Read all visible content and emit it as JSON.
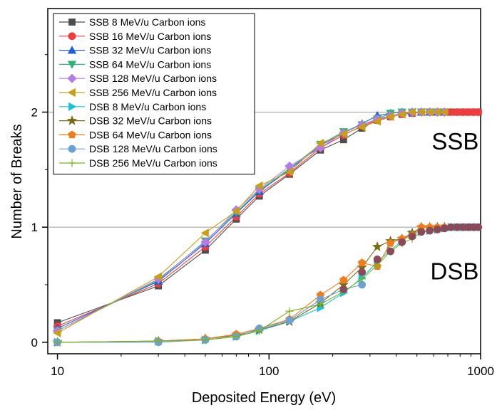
{
  "chart_data": {
    "type": "line",
    "title": "",
    "xlabel": "Deposited Energy (eV)",
    "ylabel": "Number of Breaks",
    "xscale": "log",
    "xlim": [
      9,
      1000
    ],
    "ylim": [
      -0.1,
      2.9
    ],
    "x_ticks": [
      10,
      100,
      1000
    ],
    "x_tick_labels": [
      "10",
      "100",
      "1000"
    ],
    "y_ticks": [
      0,
      1,
      2
    ],
    "y_tick_labels": [
      "0",
      "1",
      "2"
    ],
    "horizontal_gridlines": [
      1,
      2
    ],
    "legend_position": "top-left",
    "annotations": [
      {
        "text": "SSB",
        "x": 950,
        "y": 1.75
      },
      {
        "text": "DSB",
        "x": 950,
        "y": 0.62
      }
    ],
    "series": [
      {
        "name": "SSB 8 MeV/u Carbon ions",
        "color": "#4d4d4d",
        "marker": "square",
        "x": [
          10,
          30,
          50,
          70,
          90,
          125,
          175,
          225,
          275,
          325,
          375,
          425,
          475,
          525,
          575,
          625,
          675,
          725,
          775,
          825,
          875,
          925,
          975
        ],
        "y": [
          0.17,
          0.49,
          0.8,
          1.07,
          1.27,
          1.46,
          1.67,
          1.76,
          1.86,
          1.93,
          1.96,
          1.98,
          1.99,
          2,
          2,
          2,
          2,
          2,
          2,
          2,
          2,
          2,
          2
        ]
      },
      {
        "name": "SSB 16 MeV/u Carbon ions",
        "color": "#f03c3c",
        "marker": "circle",
        "x": [
          10,
          30,
          50,
          70,
          90,
          125,
          175,
          225,
          275,
          325,
          375,
          425,
          475,
          525,
          575,
          625,
          675,
          725,
          775,
          825,
          875,
          925,
          975
        ],
        "y": [
          0.14,
          0.51,
          0.83,
          1.09,
          1.29,
          1.47,
          1.69,
          1.8,
          1.88,
          1.93,
          1.96,
          1.98,
          1.99,
          2,
          2,
          2,
          2,
          2,
          2,
          2,
          2,
          2,
          2
        ]
      },
      {
        "name": "SSB 32 MeV/u Carbon ions",
        "color": "#1f5fd6",
        "marker": "triangle-up",
        "x": [
          10,
          30,
          50,
          70,
          90,
          125,
          175,
          225,
          275,
          325,
          375,
          425,
          475,
          525,
          575,
          625,
          675
        ],
        "y": [
          0.12,
          0.53,
          0.86,
          1.12,
          1.31,
          1.5,
          1.71,
          1.82,
          1.9,
          1.97,
          1.99,
          2,
          2,
          2,
          2,
          2,
          2
        ]
      },
      {
        "name": "SSB 64 MeV/u Carbon ions",
        "color": "#2bb673",
        "marker": "triangle-down",
        "x": [
          10,
          30,
          50,
          70,
          90,
          125,
          175,
          225,
          275,
          325,
          375,
          425,
          475,
          525,
          575,
          625,
          675
        ],
        "y": [
          0.1,
          0.54,
          0.88,
          1.13,
          1.32,
          1.51,
          1.72,
          1.83,
          1.89,
          1.94,
          1.99,
          2,
          2,
          2,
          2,
          2,
          2
        ]
      },
      {
        "name": "SSB 128 MeV/u Carbon ions",
        "color": "#b57be6",
        "marker": "diamond",
        "x": [
          10,
          30,
          50,
          70,
          90,
          125,
          175,
          225,
          275,
          325,
          375,
          425,
          475,
          525,
          575,
          625,
          675
        ],
        "y": [
          0.1,
          0.55,
          0.87,
          1.15,
          1.33,
          1.53,
          1.69,
          1.82,
          1.89,
          1.94,
          1.97,
          1.99,
          2,
          2,
          2,
          2,
          2
        ]
      },
      {
        "name": "SSB 256 MeV/u Carbon ions",
        "color": "#c9a015",
        "marker": "triangle-left",
        "x": [
          10,
          30,
          50,
          70,
          90,
          125,
          175,
          225,
          275,
          325,
          375,
          425,
          475,
          525,
          575,
          625,
          675
        ],
        "y": [
          0.08,
          0.57,
          0.95,
          1.14,
          1.36,
          1.48,
          1.73,
          1.81,
          1.87,
          1.92,
          1.96,
          1.98,
          2,
          2,
          2,
          2,
          2
        ]
      },
      {
        "name": "DSB 8 MeV/u Carbon ions",
        "color": "#17c3d6",
        "marker": "triangle-right",
        "x": [
          10,
          30,
          50,
          70,
          90,
          125,
          175,
          225,
          275,
          325,
          375,
          425,
          475,
          525,
          575,
          625,
          675,
          725,
          775,
          825,
          875,
          925,
          975
        ],
        "y": [
          0,
          0.01,
          0.02,
          0.05,
          0.1,
          0.18,
          0.3,
          0.43,
          0.56,
          0.7,
          0.8,
          0.88,
          0.94,
          0.96,
          0.97,
          0.98,
          0.99,
          1,
          1,
          1,
          1,
          1,
          1
        ]
      },
      {
        "name": "DSB 32 MeV/u Carbon ions",
        "color": "#7a6b10",
        "marker": "star",
        "x": [
          10,
          30,
          50,
          70,
          90,
          125,
          175,
          225,
          275,
          325,
          375,
          425,
          475,
          525,
          575,
          625,
          675
        ],
        "y": [
          0,
          0.01,
          0.03,
          0.06,
          0.11,
          0.18,
          0.34,
          0.5,
          0.65,
          0.83,
          0.88,
          0.9,
          0.95,
          1,
          1,
          1,
          1
        ]
      },
      {
        "name": "DSB 64 MeV/u Carbon ions",
        "color": "#f07c1a",
        "marker": "pentagon",
        "x": [
          10,
          30,
          50,
          70,
          90,
          125,
          175,
          225,
          275,
          325,
          375,
          425,
          475,
          525,
          575,
          625,
          675
        ],
        "y": [
          0,
          0.01,
          0.03,
          0.07,
          0.12,
          0.2,
          0.41,
          0.54,
          0.69,
          0.66,
          0.86,
          0.9,
          0.93,
          1,
          1,
          1,
          1
        ]
      },
      {
        "name": "DSB 128 MeV/u Carbon ions",
        "color": "#6aa1d6",
        "marker": "circle",
        "x": [
          10,
          30,
          50,
          70,
          90,
          125,
          175,
          225,
          275
        ],
        "y": [
          0,
          0,
          0.02,
          0.05,
          0.12,
          0.19,
          0.37,
          0.46,
          0.5
        ]
      },
      {
        "name": "DSB 256 MeV/u Carbon ions",
        "color": "#7bb31a",
        "marker": "plus",
        "x": [
          10,
          30,
          50,
          70,
          90,
          125,
          175,
          225,
          275,
          325,
          375,
          425,
          475,
          525,
          575,
          625,
          675
        ],
        "y": [
          0,
          0.01,
          0.02,
          0.05,
          0.1,
          0.27,
          0.33,
          0.44,
          0.55,
          0.67,
          0.79,
          0.86,
          0.9,
          0.96,
          0.98,
          0.99,
          1
        ]
      }
    ],
    "extra_points": [
      {
        "color": "#8a4a5a",
        "marker": "circle",
        "x": [
          225,
          275,
          325,
          375,
          425,
          475,
          525,
          575,
          625,
          675,
          725,
          775,
          825,
          875,
          925,
          975
        ],
        "y": [
          0.46,
          0.61,
          0.72,
          0.79,
          0.87,
          0.92,
          0.96,
          0.97,
          0.98,
          0.99,
          1,
          1,
          1,
          1,
          1,
          1
        ]
      }
    ]
  }
}
